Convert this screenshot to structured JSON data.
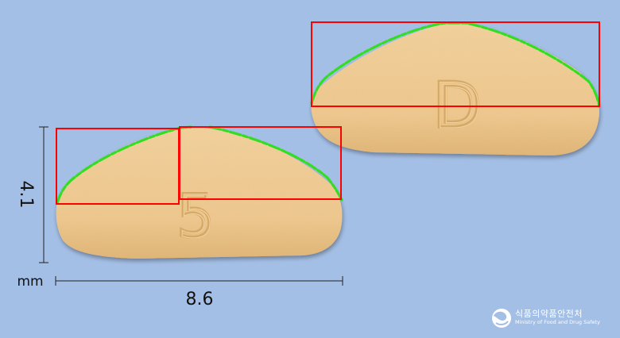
{
  "measurements": {
    "length_value": "8.6",
    "width_value": "4.1",
    "unit": "mm"
  },
  "pill": {
    "color": "#f2cc93",
    "front_imprint": "D",
    "back_imprint": "5"
  },
  "logo": {
    "korean_name": "식품의약품안전처",
    "english_name": "Ministry of Food and Drug Safety"
  },
  "colors": {
    "background": "#a4bfe6",
    "box_outline": "#ff0000",
    "contour": "#33dd22"
  }
}
